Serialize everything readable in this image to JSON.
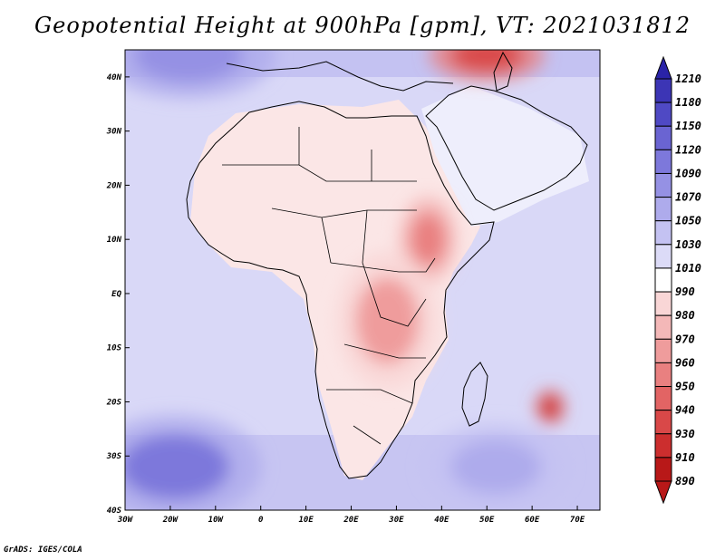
{
  "title": "Geopotential Height at 900hPa [gpm], VT: 2021031812",
  "credit": "GrADS: IGES/COLA",
  "map": {
    "projection": "lat-lon",
    "lon_range": [
      -30,
      75
    ],
    "lat_range": [
      -40,
      45
    ],
    "lat_ticks": [
      {
        "value": 40,
        "label": "40N"
      },
      {
        "value": 30,
        "label": "30N"
      },
      {
        "value": 20,
        "label": "20N"
      },
      {
        "value": 10,
        "label": "10N"
      },
      {
        "value": 0,
        "label": "EQ"
      },
      {
        "value": -10,
        "label": "10S"
      },
      {
        "value": -20,
        "label": "20S"
      },
      {
        "value": -30,
        "label": "30S"
      },
      {
        "value": -40,
        "label": "40S"
      }
    ],
    "lon_ticks": [
      {
        "value": -30,
        "label": "30W"
      },
      {
        "value": -20,
        "label": "20W"
      },
      {
        "value": -10,
        "label": "10W"
      },
      {
        "value": 0,
        "label": "0"
      },
      {
        "value": 10,
        "label": "10E"
      },
      {
        "value": 20,
        "label": "20E"
      },
      {
        "value": 30,
        "label": "30E"
      },
      {
        "value": 40,
        "label": "40E"
      },
      {
        "value": 50,
        "label": "50E"
      },
      {
        "value": 60,
        "label": "60E"
      },
      {
        "value": 70,
        "label": "70E"
      }
    ],
    "field_features": [
      {
        "name": "high-north-atlantic",
        "lon": -16,
        "lat": 44,
        "value": 1080,
        "rx": 12,
        "ry": 5
      },
      {
        "name": "high-south-atlantic",
        "lon": -19,
        "lat": -32,
        "value": 1090,
        "rx": 12,
        "ry": 6
      },
      {
        "name": "high-south-indian",
        "lon": 52,
        "lat": -32,
        "value": 1060,
        "rx": 10,
        "ry": 5
      },
      {
        "name": "low-east-africa",
        "lon": 37,
        "lat": 10,
        "value": 950,
        "rx": 4,
        "ry": 5
      },
      {
        "name": "low-central-africa",
        "lon": 28,
        "lat": -5,
        "value": 965,
        "rx": 7,
        "ry": 8
      },
      {
        "name": "low-middle-east",
        "lon": 50,
        "lat": 44,
        "value": 930,
        "rx": 8,
        "ry": 3
      },
      {
        "name": "low-mascarene",
        "lon": 64,
        "lat": -21,
        "value": 920,
        "rx": 2,
        "ry": 2
      }
    ]
  },
  "colorbar": {
    "levels": [
      "1210",
      "1180",
      "1150",
      "1120",
      "1090",
      "1070",
      "1050",
      "1030",
      "1010",
      "990",
      "980",
      "970",
      "960",
      "950",
      "940",
      "930",
      "910",
      "890"
    ],
    "colors": [
      "#2a23a8",
      "#3c35b5",
      "#4f49c4",
      "#6a64d2",
      "#7d78db",
      "#9591e4",
      "#aeabec",
      "#c4c2f2",
      "#dcdbf7",
      "#ffffff",
      "#f9d6d6",
      "#f4b8b8",
      "#ef9c9c",
      "#e98080",
      "#e26464",
      "#d94848",
      "#cc2e2e",
      "#b81818"
    ]
  }
}
